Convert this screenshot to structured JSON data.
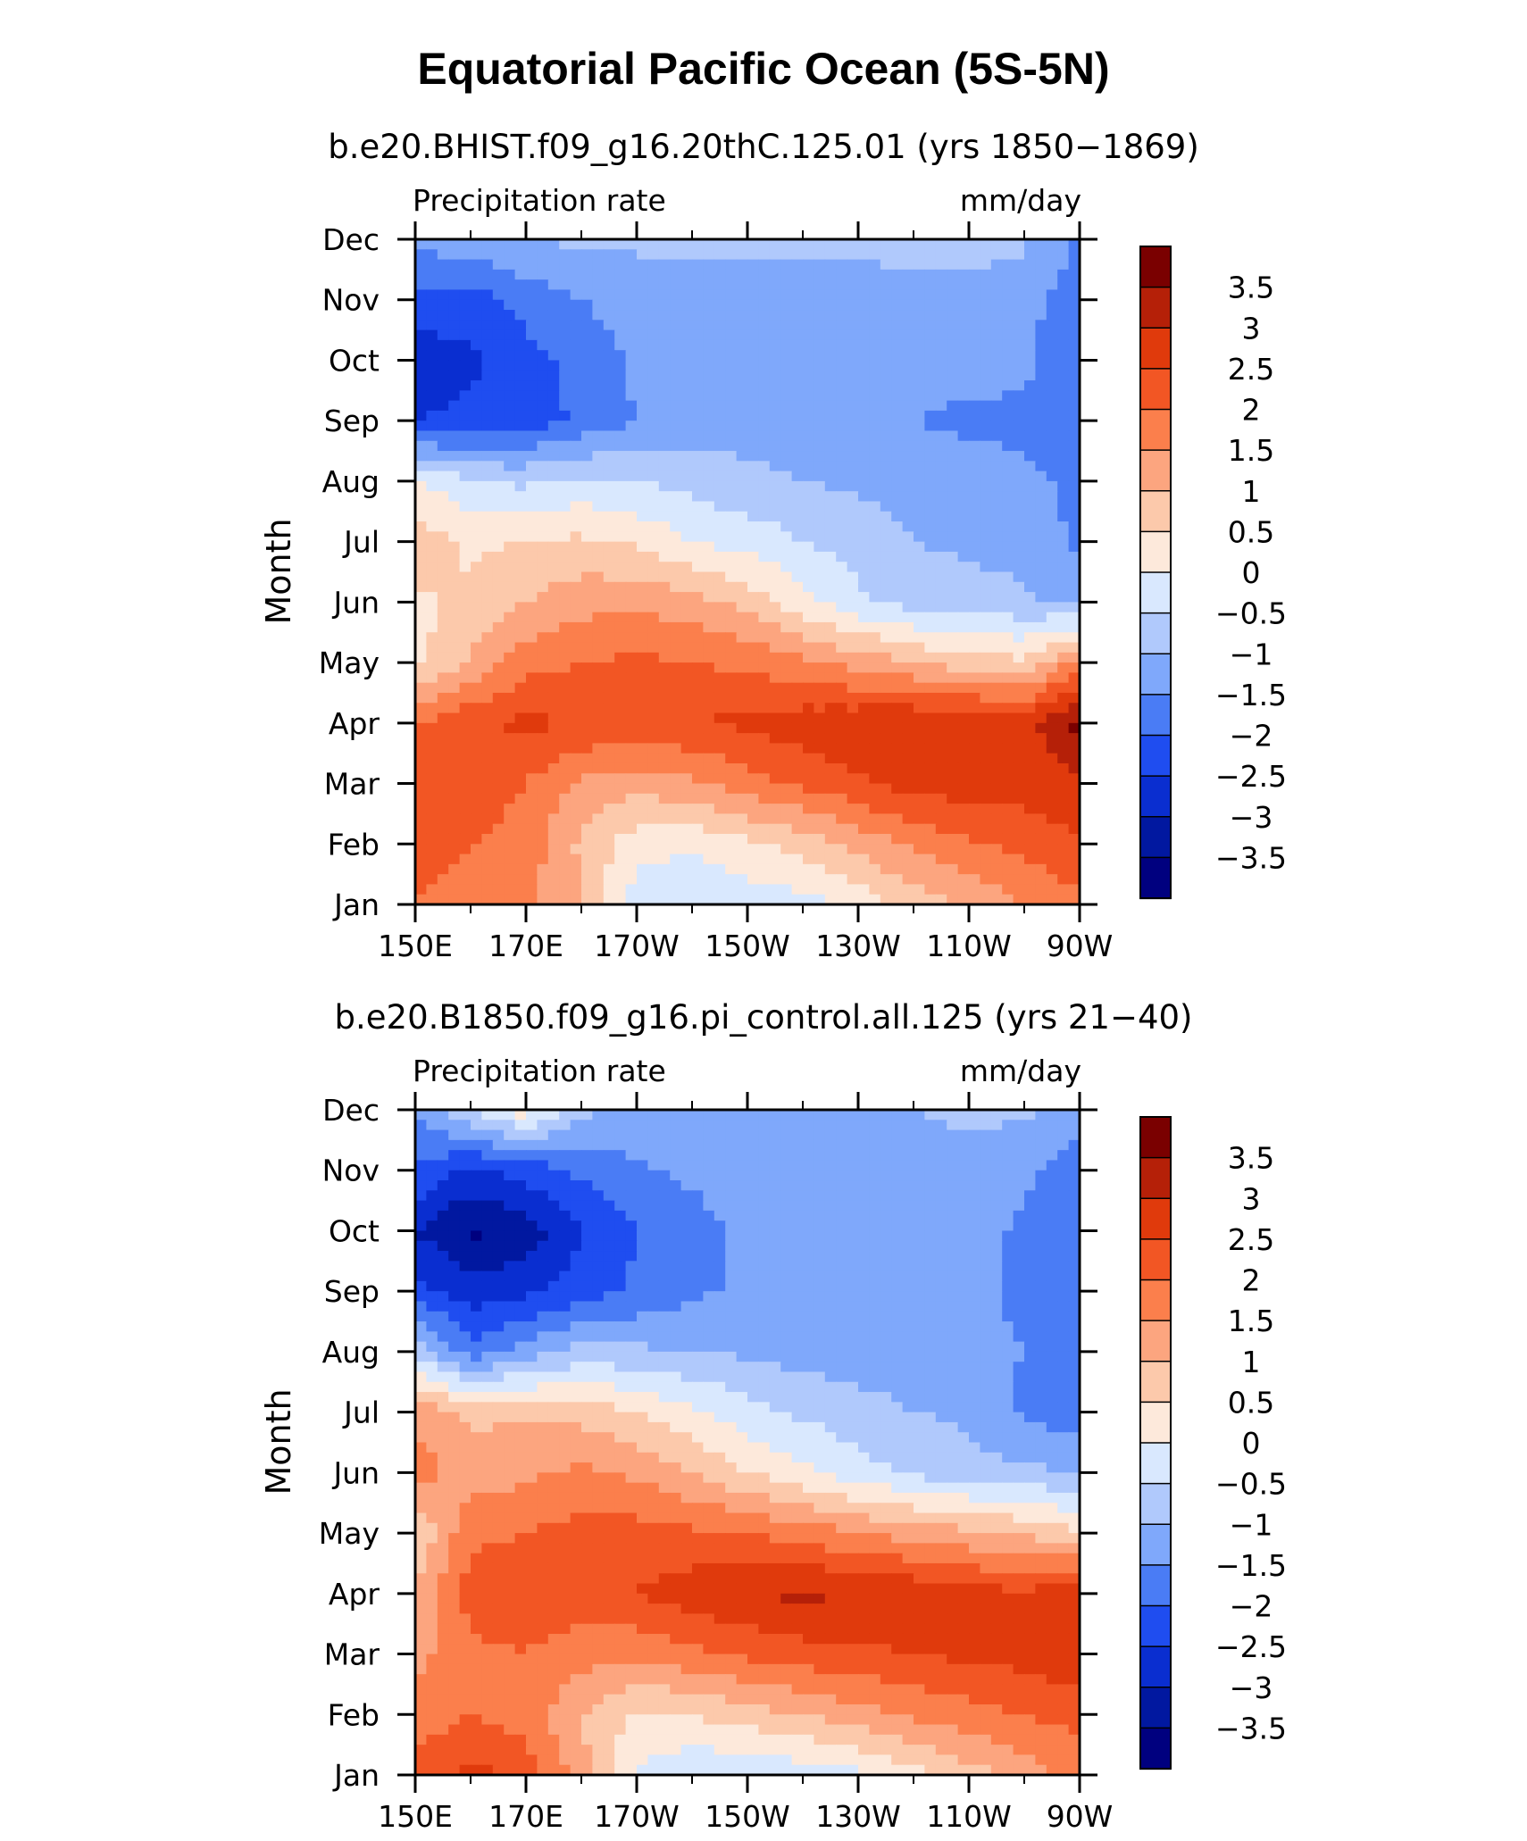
{
  "figure": {
    "title": "Equatorial Pacific Ocean (5S-5N)"
  },
  "chart_data": [
    {
      "type": "heatmap",
      "title": "b.e20.BHIST.f09_g16.20thC.125.01 (yrs 1850−1869)",
      "left_label": "Precipitation rate",
      "right_label": "mm/day",
      "xlabel": "",
      "ylabel": "Month",
      "x_tick_labels": [
        "150E",
        "170E",
        "170W",
        "150W",
        "130W",
        "110W",
        "90W"
      ],
      "x_ticks_deg_east": [
        150,
        170,
        190,
        210,
        230,
        250,
        270
      ],
      "xlim_deg_east": [
        150,
        270
      ],
      "y_tick_labels": [
        "Jan",
        "Feb",
        "Mar",
        "Apr",
        "May",
        "Jun",
        "Jul",
        "Aug",
        "Sep",
        "Oct",
        "Nov",
        "Dec"
      ],
      "ylim_month": [
        1,
        12
      ],
      "colorbar_labels": [
        "3.5",
        "3",
        "2.5",
        "2",
        "1.5",
        "1",
        "0.5",
        "0",
        "−0.5",
        "−1",
        "−1.5",
        "−2",
        "−2.5",
        "−3",
        "−3.5"
      ],
      "contour_levels": [
        -3.5,
        -3,
        -2.5,
        -2,
        -1.5,
        -1,
        -0.5,
        0,
        0.5,
        1,
        1.5,
        2,
        2.5,
        3,
        3.5
      ],
      "grid": false,
      "value_grid": {
        "description": "approximate anomaly (mm/day) read from the filled contours; rows = months Jan..Dec, columns = longitudes",
        "lon": [
          150,
          160,
          170,
          180,
          190,
          200,
          210,
          220,
          230,
          240,
          250,
          260,
          270
        ],
        "values": [
          [
            2.0,
            1.8,
            1.6,
            1.0,
            -0.3,
            -0.5,
            -0.3,
            -0.2,
            0.2,
            0.7,
            1.1,
            1.5,
            1.9
          ],
          [
            2.2,
            2.0,
            1.8,
            0.9,
            0.2,
            0.1,
            0.4,
            0.7,
            1.2,
            1.6,
            1.9,
            2.2,
            2.4
          ],
          [
            2.3,
            2.3,
            2.0,
            1.4,
            1.2,
            1.4,
            1.8,
            2.1,
            2.4,
            2.7,
            2.8,
            2.7,
            2.9
          ],
          [
            2.0,
            2.4,
            2.6,
            2.5,
            2.4,
            2.5,
            2.6,
            2.8,
            2.9,
            3.0,
            3.0,
            2.8,
            3.7
          ],
          [
            0.3,
            1.1,
            1.8,
            2.0,
            2.1,
            2.0,
            1.9,
            1.6,
            1.3,
            1.0,
            0.7,
            0.6,
            1.7
          ],
          [
            0.4,
            0.6,
            1.0,
            1.3,
            1.4,
            1.2,
            0.8,
            0.2,
            -0.4,
            -0.7,
            -0.8,
            -0.9,
            -1.2
          ],
          [
            0.8,
            0.4,
            0.5,
            0.6,
            0.4,
            0.0,
            -0.2,
            -0.5,
            -0.7,
            -1.0,
            -1.1,
            -1.2,
            -1.6
          ],
          [
            0.1,
            -0.5,
            -0.6,
            -0.4,
            -0.5,
            -0.7,
            -0.9,
            -1.0,
            -1.1,
            -1.2,
            -1.3,
            -1.4,
            -1.6
          ],
          [
            -2.5,
            -2.4,
            -2.3,
            -1.9,
            -1.5,
            -1.2,
            -1.2,
            -1.2,
            -1.4,
            -1.5,
            -1.6,
            -1.6,
            -1.8
          ],
          [
            -2.8,
            -2.6,
            -2.2,
            -1.8,
            -1.4,
            -1.3,
            -1.3,
            -1.3,
            -1.3,
            -1.3,
            -1.3,
            -1.4,
            -2.0
          ],
          [
            -2.2,
            -2.2,
            -1.8,
            -1.5,
            -1.3,
            -1.2,
            -1.2,
            -1.2,
            -1.2,
            -1.2,
            -1.2,
            -1.3,
            -1.8
          ],
          [
            -1.3,
            -1.2,
            -1.0,
            -0.9,
            -0.9,
            -0.9,
            -0.9,
            -0.9,
            -0.9,
            -0.8,
            -0.8,
            -0.9,
            -1.6
          ]
        ]
      }
    },
    {
      "type": "heatmap",
      "title": "b.e20.B1850.f09_g16.pi_control.all.125 (yrs 21−40)",
      "left_label": "Precipitation rate",
      "right_label": "mm/day",
      "xlabel": "",
      "ylabel": "Month",
      "x_tick_labels": [
        "150E",
        "170E",
        "170W",
        "150W",
        "130W",
        "110W",
        "90W"
      ],
      "x_ticks_deg_east": [
        150,
        170,
        190,
        210,
        230,
        250,
        270
      ],
      "xlim_deg_east": [
        150,
        270
      ],
      "y_tick_labels": [
        "Jan",
        "Feb",
        "Mar",
        "Apr",
        "May",
        "Jun",
        "Jul",
        "Aug",
        "Sep",
        "Oct",
        "Nov",
        "Dec"
      ],
      "ylim_month": [
        1,
        12
      ],
      "colorbar_labels": [
        "3.5",
        "3",
        "2.5",
        "2",
        "1.5",
        "1",
        "0.5",
        "0",
        "−0.5",
        "−1",
        "−1.5",
        "−2",
        "−2.5",
        "−3",
        "−3.5"
      ],
      "contour_levels": [
        -3.5,
        -3,
        -2.5,
        -2,
        -1.5,
        -1,
        -0.5,
        0,
        0.5,
        1,
        1.5,
        2,
        2.5,
        3,
        3.5
      ],
      "grid": false,
      "value_grid": {
        "description": "approximate anomaly (mm/day) read from the filled contours; rows = months Jan..Dec, columns = longitudes",
        "lon": [
          150,
          160,
          170,
          180,
          190,
          200,
          210,
          220,
          230,
          240,
          250,
          260,
          270
        ],
        "values": [
          [
            2.2,
            2.7,
            2.3,
            1.2,
            -0.1,
            -0.4,
            -0.5,
            -0.3,
            -0.1,
            0.3,
            0.8,
            1.2,
            1.7
          ],
          [
            1.7,
            2.0,
            1.8,
            1.0,
            0.4,
            0.5,
            0.8,
            1.0,
            1.3,
            1.6,
            1.8,
            2.0,
            2.2
          ],
          [
            1.3,
            1.9,
            2.0,
            1.7,
            1.6,
            1.9,
            2.1,
            2.3,
            2.4,
            2.5,
            2.6,
            2.7,
            2.9
          ],
          [
            1.0,
            2.2,
            2.3,
            2.3,
            2.5,
            2.8,
            3.0,
            3.1,
            3.0,
            2.9,
            2.7,
            2.6,
            2.9
          ],
          [
            0.5,
            1.9,
            2.0,
            2.2,
            2.2,
            2.1,
            2.0,
            1.8,
            1.5,
            1.3,
            1.1,
            0.9,
            0.6
          ],
          [
            1.8,
            1.2,
            1.4,
            1.6,
            1.4,
            1.0,
            0.5,
            0.1,
            -0.3,
            -0.6,
            -0.8,
            -0.9,
            -1.0
          ],
          [
            1.3,
            0.9,
            0.9,
            0.8,
            0.5,
            0.1,
            -0.3,
            -0.6,
            -0.8,
            -1.0,
            -1.1,
            -1.6,
            -1.8
          ],
          [
            -0.6,
            -1.8,
            -1.3,
            -0.8,
            -0.9,
            -1.0,
            -1.1,
            -1.2,
            -1.3,
            -1.3,
            -1.4,
            -1.5,
            -1.7
          ],
          [
            -2.3,
            -2.8,
            -2.6,
            -2.3,
            -1.9,
            -1.6,
            -1.4,
            -1.3,
            -1.3,
            -1.3,
            -1.4,
            -1.6,
            -1.8
          ],
          [
            -3.0,
            -3.6,
            -3.3,
            -2.5,
            -2.0,
            -1.7,
            -1.4,
            -1.3,
            -1.3,
            -1.3,
            -1.3,
            -1.6,
            -2.0
          ],
          [
            -2.0,
            -2.6,
            -2.3,
            -1.9,
            -1.6,
            -1.4,
            -1.2,
            -1.2,
            -1.2,
            -1.2,
            -1.2,
            -1.4,
            -1.8
          ],
          [
            -1.5,
            -0.5,
            0.3,
            -0.9,
            -1.0,
            -1.0,
            -1.0,
            -1.0,
            -1.0,
            -1.0,
            -0.9,
            -0.9,
            -1.2
          ]
        ]
      }
    }
  ],
  "colormap": [
    "#00007f",
    "#0118a0",
    "#0a2ed0",
    "#1f4df0",
    "#4a7cf5",
    "#7fa8fb",
    "#b0c9fc",
    "#d9e8fe",
    "#fde9db",
    "#fcc9ab",
    "#fca57f",
    "#fb7f4c",
    "#f25624",
    "#e03a0c",
    "#b52008",
    "#7a0000"
  ]
}
